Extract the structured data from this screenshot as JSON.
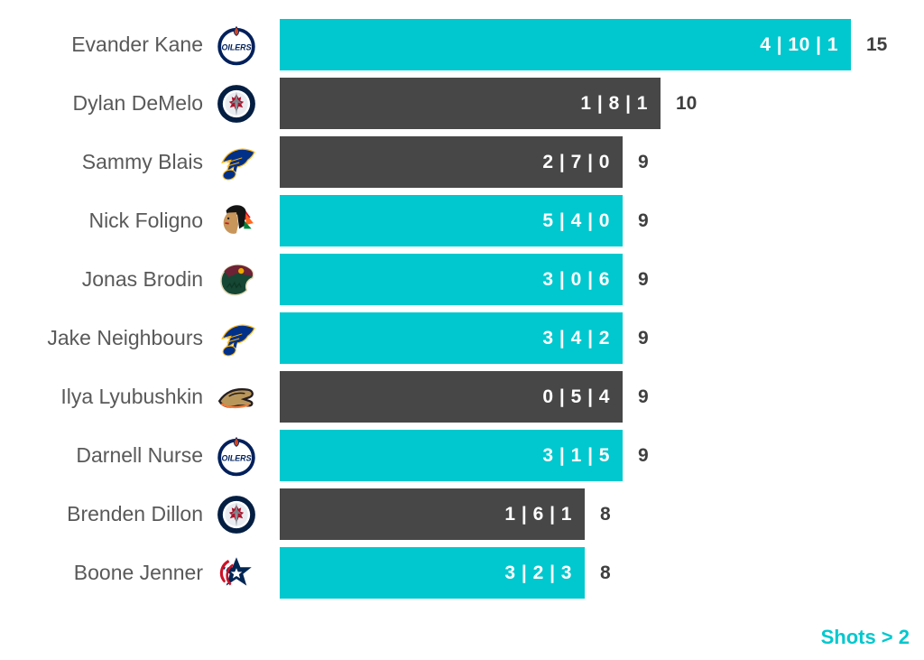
{
  "colors": {
    "teal": "#00C8CE",
    "dark": "#474747",
    "name_text": "#595959",
    "total_text": "#3F3F3F",
    "value_text": "#FFFFFF",
    "background": "#FFFFFF"
  },
  "footer": {
    "label": "Shots > 2"
  },
  "chart_data": {
    "type": "bar",
    "orientation": "horizontal",
    "title": "",
    "xlabel": "",
    "ylabel": "",
    "x_max": 15,
    "grid": false,
    "legend": false,
    "caption": "Shots > 2",
    "value_separator": " | ",
    "categories": [
      "Evander Kane",
      "Dylan DeMelo",
      "Sammy Blais",
      "Nick Foligno",
      "Jonas Brodin",
      "Jake Neighbours",
      "Ilya Lyubushkin",
      "Darnell Nurse",
      "Brenden Dillon",
      "Boone Jenner"
    ],
    "rows": [
      {
        "player": "Evander Kane",
        "logo": "oilers-logo",
        "segments": [
          4,
          10,
          1
        ],
        "segments_label": "4 | 10 | 1",
        "total": 15,
        "color": "teal"
      },
      {
        "player": "Dylan DeMelo",
        "logo": "jets-logo",
        "segments": [
          1,
          8,
          1
        ],
        "segments_label": "1 | 8 | 1",
        "total": 10,
        "color": "dark"
      },
      {
        "player": "Sammy Blais",
        "logo": "blues-logo",
        "segments": [
          2,
          7,
          0
        ],
        "segments_label": "2 | 7 | 0",
        "total": 9,
        "color": "dark"
      },
      {
        "player": "Nick Foligno",
        "logo": "blackhawks-logo",
        "segments": [
          5,
          4,
          0
        ],
        "segments_label": "5 | 4 | 0",
        "total": 9,
        "color": "teal"
      },
      {
        "player": "Jonas Brodin",
        "logo": "wild-logo",
        "segments": [
          3,
          0,
          6
        ],
        "segments_label": "3 | 0 | 6",
        "total": 9,
        "color": "teal"
      },
      {
        "player": "Jake Neighbours",
        "logo": "blues-logo",
        "segments": [
          3,
          4,
          2
        ],
        "segments_label": "3 | 4 | 2",
        "total": 9,
        "color": "teal"
      },
      {
        "player": "Ilya Lyubushkin",
        "logo": "ducks-logo",
        "segments": [
          0,
          5,
          4
        ],
        "segments_label": "0 | 5 | 4",
        "total": 9,
        "color": "dark"
      },
      {
        "player": "Darnell Nurse",
        "logo": "oilers-logo",
        "segments": [
          3,
          1,
          5
        ],
        "segments_label": "3 | 1 | 5",
        "total": 9,
        "color": "teal"
      },
      {
        "player": "Brenden Dillon",
        "logo": "jets-logo",
        "segments": [
          1,
          6,
          1
        ],
        "segments_label": "1 | 6 | 1",
        "total": 8,
        "color": "dark"
      },
      {
        "player": "Boone Jenner",
        "logo": "bluejackets-logo",
        "segments": [
          3,
          2,
          3
        ],
        "segments_label": "3 | 2 | 3",
        "total": 8,
        "color": "teal"
      }
    ]
  }
}
